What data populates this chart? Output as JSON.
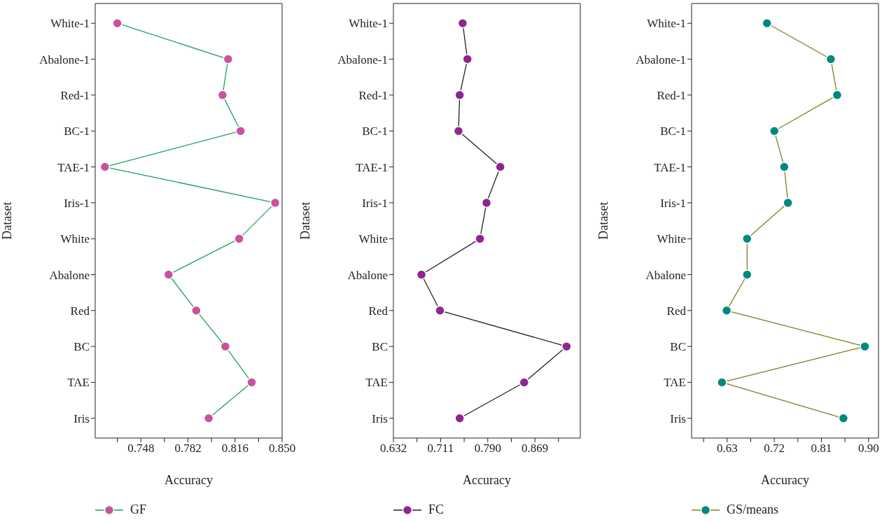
{
  "chart_data": [
    {
      "type": "line",
      "orientation": "horizontal",
      "xlabel": "Accuracy",
      "ylabel": "Dataset",
      "legend": "bottom left",
      "marker": "circle",
      "categories": [
        "White-1",
        "Abalone-1",
        "Red-1",
        "BC-1",
        "TAE-1",
        "Iris-1",
        "White",
        "Abalone",
        "Red",
        "BC",
        "TAE",
        "Iris"
      ],
      "xlim": [
        0.715,
        0.85
      ],
      "xticks": [
        {
          "value": 0.731,
          "label": null
        },
        0.748,
        {
          "value": 0.765,
          "label": null
        },
        0.782,
        {
          "value": 0.799,
          "label": null
        },
        0.816,
        {
          "value": 0.833,
          "label": null
        },
        {
          "value": 0.85,
          "label": "0.850"
        }
      ],
      "series": [
        {
          "name": "GF",
          "color": "#1aa35a",
          "colors": [
            "#c9529f",
            "#c9529f",
            "#c9529f",
            "#c9529f",
            "#c9529f",
            "#c9529f",
            "#c9529f",
            "#c9529f",
            "#c9529f",
            "#c9529f",
            "#c9529f",
            "#c9529f"
          ],
          "values": [
            0.731,
            0.811,
            0.807,
            0.82,
            0.722,
            0.845,
            0.819,
            0.768,
            0.788,
            0.809,
            0.828,
            0.797
          ]
        }
      ]
    },
    {
      "type": "line",
      "orientation": "horizontal",
      "xlabel": "Accuracy",
      "ylabel": "Dataset",
      "legend": "bottom left",
      "marker": "circle",
      "categories": [
        "White-1",
        "Abalone-1",
        "Red-1",
        "BC-1",
        "TAE-1",
        "Iris-1",
        "White",
        "Abalone",
        "Red",
        "BC",
        "TAE",
        "Iris"
      ],
      "xlim": [
        0.632,
        0.945
      ],
      "xticks": [
        0.632,
        {
          "value": 0.6715,
          "label": null
        },
        0.711,
        {
          "value": 0.7505,
          "label": null
        },
        {
          "value": 0.79,
          "label": "0.790"
        },
        {
          "value": 0.8295,
          "label": null
        },
        0.869,
        {
          "value": 0.9085,
          "label": null
        }
      ],
      "series": [
        {
          "name": "FC",
          "color": "#222222",
          "colors": [
            "#8e2592",
            "#8e2592",
            "#8e2592",
            "#8e2592",
            "#8e2592",
            "#8e2592",
            "#8e2592",
            "#8e2592",
            "#8e2592",
            "#8e2592",
            "#8e2592",
            "#8e2592"
          ],
          "values": [
            0.748,
            0.756,
            0.743,
            0.741,
            0.811,
            0.788,
            0.777,
            0.679,
            0.71,
            0.922,
            0.851,
            0.743
          ]
        }
      ]
    },
    {
      "type": "line",
      "orientation": "horizontal",
      "xlabel": "Accuracy",
      "ylabel": "Dataset",
      "legend": "bottom left",
      "marker": "circle",
      "categories": [
        "White-1",
        "Abalone-1",
        "Red-1",
        "BC-1",
        "TAE-1",
        "Iris-1",
        "White",
        "Abalone",
        "Red",
        "BC",
        "TAE",
        "Iris"
      ],
      "xlim": [
        0.562,
        0.919
      ],
      "xticks": [
        {
          "value": 0.585,
          "label": null
        },
        0.63,
        {
          "value": 0.675,
          "label": null
        },
        0.72,
        {
          "value": 0.765,
          "label": null
        },
        0.81,
        {
          "value": 0.855,
          "label": null
        },
        {
          "value": 0.9,
          "label": "0.90"
        }
      ],
      "series": [
        {
          "name": "GS/means",
          "color": "#808020",
          "colors": [
            "#00897f",
            "#00897f",
            "#00897f",
            "#00897f",
            "#00897f",
            "#00897f",
            "#00897f",
            "#00897f",
            "#00897f",
            "#00897f",
            "#00897f",
            "#00897f"
          ],
          "values": [
            0.706,
            0.828,
            0.84,
            0.72,
            0.739,
            0.746,
            0.668,
            0.668,
            0.629,
            0.893,
            0.62,
            0.852
          ]
        }
      ]
    }
  ]
}
